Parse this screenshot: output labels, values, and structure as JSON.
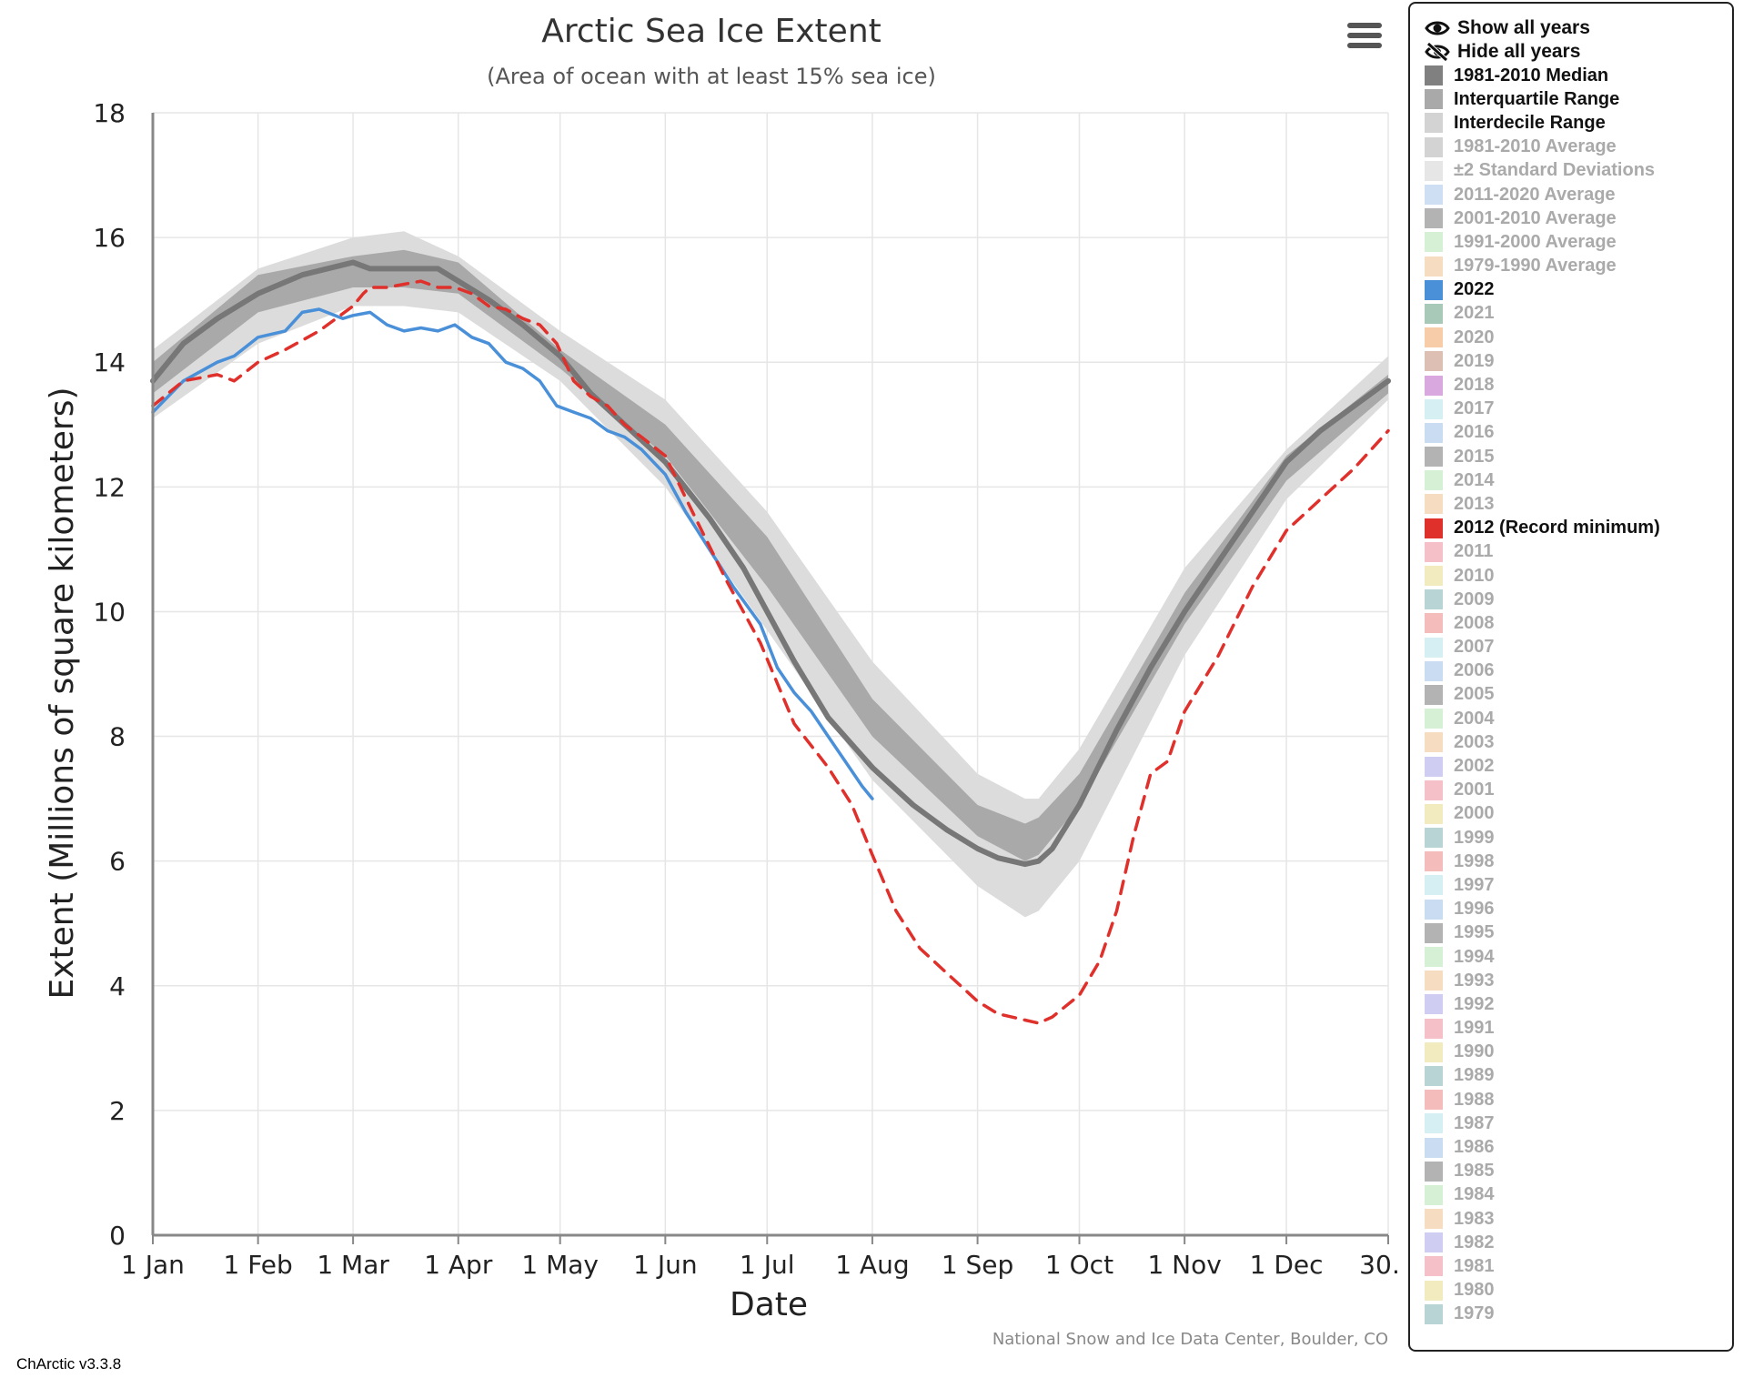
{
  "app": {
    "version": "ChArctic v3.3.8"
  },
  "menu_icon": "hamburger-menu-icon",
  "chart_data": {
    "type": "line",
    "title": "Arctic Sea Ice Extent",
    "subtitle": "(Area of ocean with at least 15% sea ice)",
    "xlabel": "Date",
    "ylabel": "Extent (Millions of square kilometers)",
    "credit": "National Snow and Ice Data Center, Boulder, CO",
    "x_unit": "day of year",
    "xlim": [
      1,
      365
    ],
    "ylim": [
      0,
      18
    ],
    "y_ticks": [
      0,
      2,
      4,
      6,
      8,
      10,
      12,
      14,
      16,
      18
    ],
    "x_ticks": [
      {
        "day": 1,
        "label": "1 Jan"
      },
      {
        "day": 32,
        "label": "1 Feb"
      },
      {
        "day": 60,
        "label": "1 Mar"
      },
      {
        "day": 91,
        "label": "1 Apr"
      },
      {
        "day": 121,
        "label": "1 May"
      },
      {
        "day": 152,
        "label": "1 Jun"
      },
      {
        "day": 182,
        "label": "1 Jul"
      },
      {
        "day": 213,
        "label": "1 Aug"
      },
      {
        "day": 244,
        "label": "1 Sep"
      },
      {
        "day": 274,
        "label": "1 Oct"
      },
      {
        "day": 305,
        "label": "1 Nov"
      },
      {
        "day": 335,
        "label": "1 Dec"
      },
      {
        "day": 365,
        "label": "30…"
      }
    ],
    "grid": true,
    "legend_position": "right",
    "bands": [
      {
        "name": "Interdecile Range",
        "color": "#dcdcdc",
        "x": [
          1,
          32,
          60,
          75,
          91,
          121,
          152,
          182,
          213,
          244,
          258,
          262,
          274,
          305,
          335,
          365
        ],
        "lower": [
          13.1,
          14.3,
          14.9,
          14.9,
          14.8,
          13.7,
          12.0,
          9.7,
          7.3,
          5.6,
          5.1,
          5.2,
          6.0,
          9.3,
          11.8,
          13.4
        ],
        "upper": [
          14.2,
          15.5,
          16.0,
          16.1,
          15.7,
          14.5,
          13.4,
          11.6,
          9.2,
          7.4,
          7.0,
          7.0,
          7.8,
          10.7,
          12.6,
          14.1
        ]
      },
      {
        "name": "Interquartile Range",
        "color": "#a9a9a9",
        "x": [
          1,
          32,
          60,
          75,
          91,
          121,
          152,
          182,
          213,
          244,
          258,
          262,
          274,
          305,
          335,
          365
        ],
        "lower": [
          13.5,
          14.8,
          15.2,
          15.2,
          15.1,
          13.9,
          12.5,
          10.4,
          8.0,
          6.4,
          6.0,
          6.1,
          6.9,
          9.8,
          12.1,
          13.5
        ],
        "upper": [
          14.0,
          15.4,
          15.7,
          15.8,
          15.6,
          14.2,
          13.0,
          11.2,
          8.6,
          6.9,
          6.6,
          6.7,
          7.4,
          10.3,
          12.5,
          13.8
        ]
      }
    ],
    "series": [
      {
        "name": "1981-2010 Median",
        "color": "#777777",
        "dash": false,
        "x": [
          1,
          10,
          20,
          32,
          45,
          60,
          65,
          75,
          85,
          91,
          100,
          110,
          121,
          130,
          140,
          152,
          165,
          175,
          182,
          190,
          200,
          213,
          225,
          235,
          244,
          250,
          258,
          262,
          266,
          274,
          285,
          295,
          305,
          315,
          325,
          335,
          345,
          355,
          365
        ],
        "y": [
          13.7,
          14.3,
          14.7,
          15.1,
          15.4,
          15.6,
          15.5,
          15.5,
          15.5,
          15.3,
          15.0,
          14.6,
          14.1,
          13.5,
          13.0,
          12.4,
          11.5,
          10.7,
          10.0,
          9.2,
          8.3,
          7.5,
          6.9,
          6.5,
          6.2,
          6.05,
          5.95,
          6.0,
          6.2,
          6.9,
          8.1,
          9.1,
          10.0,
          10.8,
          11.6,
          12.4,
          12.9,
          13.3,
          13.7
        ]
      },
      {
        "name": "2022",
        "color": "#4a90d9",
        "dash": false,
        "x": [
          1,
          10,
          20,
          25,
          32,
          40,
          45,
          50,
          57,
          60,
          65,
          70,
          75,
          80,
          85,
          90,
          95,
          100,
          105,
          110,
          115,
          120,
          125,
          130,
          135,
          140,
          145,
          152,
          158,
          165,
          172,
          180,
          185,
          190,
          195,
          200,
          205,
          210,
          213
        ],
        "y": [
          13.2,
          13.7,
          14.0,
          14.1,
          14.4,
          14.5,
          14.8,
          14.85,
          14.7,
          14.75,
          14.8,
          14.6,
          14.5,
          14.55,
          14.5,
          14.6,
          14.4,
          14.3,
          14.0,
          13.9,
          13.7,
          13.3,
          13.2,
          13.1,
          12.9,
          12.8,
          12.6,
          12.2,
          11.6,
          11.0,
          10.4,
          9.8,
          9.1,
          8.7,
          8.4,
          8.0,
          7.6,
          7.2,
          7.0
        ]
      },
      {
        "name": "2012 (Record minimum)",
        "color": "#e0302b",
        "dash": true,
        "x": [
          1,
          10,
          20,
          25,
          32,
          40,
          50,
          60,
          63,
          65,
          70,
          75,
          80,
          85,
          90,
          95,
          100,
          105,
          110,
          115,
          120,
          125,
          130,
          135,
          140,
          145,
          152,
          160,
          170,
          180,
          190,
          200,
          207,
          213,
          220,
          227,
          235,
          244,
          250,
          258,
          262,
          266,
          274,
          280,
          285,
          290,
          295,
          300,
          305,
          315,
          325,
          335,
          345,
          355,
          365
        ],
        "y": [
          13.3,
          13.7,
          13.8,
          13.7,
          14.0,
          14.2,
          14.5,
          14.9,
          15.1,
          15.2,
          15.2,
          15.25,
          15.3,
          15.2,
          15.2,
          15.1,
          14.9,
          14.85,
          14.7,
          14.6,
          14.3,
          13.7,
          13.45,
          13.3,
          13.0,
          12.8,
          12.5,
          11.6,
          10.5,
          9.5,
          8.2,
          7.5,
          6.9,
          6.1,
          5.2,
          4.6,
          4.2,
          3.75,
          3.55,
          3.45,
          3.4,
          3.5,
          3.85,
          4.4,
          5.2,
          6.4,
          7.4,
          7.6,
          8.4,
          9.3,
          10.4,
          11.3,
          11.8,
          12.3,
          12.9
        ]
      }
    ]
  },
  "legend": {
    "show_all": {
      "label": "Show all years",
      "icon": "eye-icon"
    },
    "hide_all": {
      "label": "Hide all years",
      "icon": "eye-slash-icon"
    },
    "items": [
      {
        "label": "1981-2010 Median",
        "color": "#808080",
        "visible": true
      },
      {
        "label": "Interquartile Range",
        "color": "#a9a9a9",
        "visible": true
      },
      {
        "label": "Interdecile Range",
        "color": "#d3d3d3",
        "visible": true
      },
      {
        "label": "1981-2010 Average",
        "color": "#d3d3d3",
        "visible": false
      },
      {
        "label": "±2 Standard Deviations",
        "color": "#e6e6e6",
        "visible": false
      },
      {
        "label": "2011-2020 Average",
        "color": "#cfdff3",
        "visible": false
      },
      {
        "label": "2001-2010 Average",
        "color": "#b3b3b3",
        "visible": false
      },
      {
        "label": "1991-2000 Average",
        "color": "#d5f0d5",
        "visible": false
      },
      {
        "label": "1979-1990 Average",
        "color": "#f6dcc0",
        "visible": false
      },
      {
        "label": "2022",
        "color": "#4a90d9",
        "visible": true
      },
      {
        "label": "2021",
        "color": "#a8c8b8",
        "visible": false
      },
      {
        "label": "2020",
        "color": "#f7cca8",
        "visible": false
      },
      {
        "label": "2019",
        "color": "#ddbfb3",
        "visible": false
      },
      {
        "label": "2018",
        "color": "#d8a8de",
        "visible": false
      },
      {
        "label": "2017",
        "color": "#d5eff2",
        "visible": false
      },
      {
        "label": "2016",
        "color": "#c9dcf2",
        "visible": false
      },
      {
        "label": "2015",
        "color": "#b3b3b3",
        "visible": false
      },
      {
        "label": "2014",
        "color": "#d5f0d5",
        "visible": false
      },
      {
        "label": "2013",
        "color": "#f6dcc0",
        "visible": false
      },
      {
        "label": "2012 (Record minimum)",
        "color": "#e0302b",
        "visible": true
      },
      {
        "label": "2011",
        "color": "#f5c0c8",
        "visible": false
      },
      {
        "label": "2010",
        "color": "#f3ebc0",
        "visible": false
      },
      {
        "label": "2009",
        "color": "#b8d4d4",
        "visible": false
      },
      {
        "label": "2008",
        "color": "#f5bcbc",
        "visible": false
      },
      {
        "label": "2007",
        "color": "#d5eff2",
        "visible": false
      },
      {
        "label": "2006",
        "color": "#c9dcf2",
        "visible": false
      },
      {
        "label": "2005",
        "color": "#b3b3b3",
        "visible": false
      },
      {
        "label": "2004",
        "color": "#d5f0d5",
        "visible": false
      },
      {
        "label": "2003",
        "color": "#f6dcc0",
        "visible": false
      },
      {
        "label": "2002",
        "color": "#d0cdf2",
        "visible": false
      },
      {
        "label": "2001",
        "color": "#f5c0c8",
        "visible": false
      },
      {
        "label": "2000",
        "color": "#f3ebc0",
        "visible": false
      },
      {
        "label": "1999",
        "color": "#b8d4d4",
        "visible": false
      },
      {
        "label": "1998",
        "color": "#f5bcbc",
        "visible": false
      },
      {
        "label": "1997",
        "color": "#d5eff2",
        "visible": false
      },
      {
        "label": "1996",
        "color": "#c9dcf2",
        "visible": false
      },
      {
        "label": "1995",
        "color": "#b3b3b3",
        "visible": false
      },
      {
        "label": "1994",
        "color": "#d5f0d5",
        "visible": false
      },
      {
        "label": "1993",
        "color": "#f6dcc0",
        "visible": false
      },
      {
        "label": "1992",
        "color": "#d0cdf2",
        "visible": false
      },
      {
        "label": "1991",
        "color": "#f5c0c8",
        "visible": false
      },
      {
        "label": "1990",
        "color": "#f3ebc0",
        "visible": false
      },
      {
        "label": "1989",
        "color": "#b8d4d4",
        "visible": false
      },
      {
        "label": "1988",
        "color": "#f5bcbc",
        "visible": false
      },
      {
        "label": "1987",
        "color": "#d5eff2",
        "visible": false
      },
      {
        "label": "1986",
        "color": "#c9dcf2",
        "visible": false
      },
      {
        "label": "1985",
        "color": "#b3b3b3",
        "visible": false
      },
      {
        "label": "1984",
        "color": "#d5f0d5",
        "visible": false
      },
      {
        "label": "1983",
        "color": "#f6dcc0",
        "visible": false
      },
      {
        "label": "1982",
        "color": "#d0cdf2",
        "visible": false
      },
      {
        "label": "1981",
        "color": "#f5c0c8",
        "visible": false
      },
      {
        "label": "1980",
        "color": "#f3ebc0",
        "visible": false
      },
      {
        "label": "1979",
        "color": "#b8d4d4",
        "visible": false
      }
    ]
  }
}
